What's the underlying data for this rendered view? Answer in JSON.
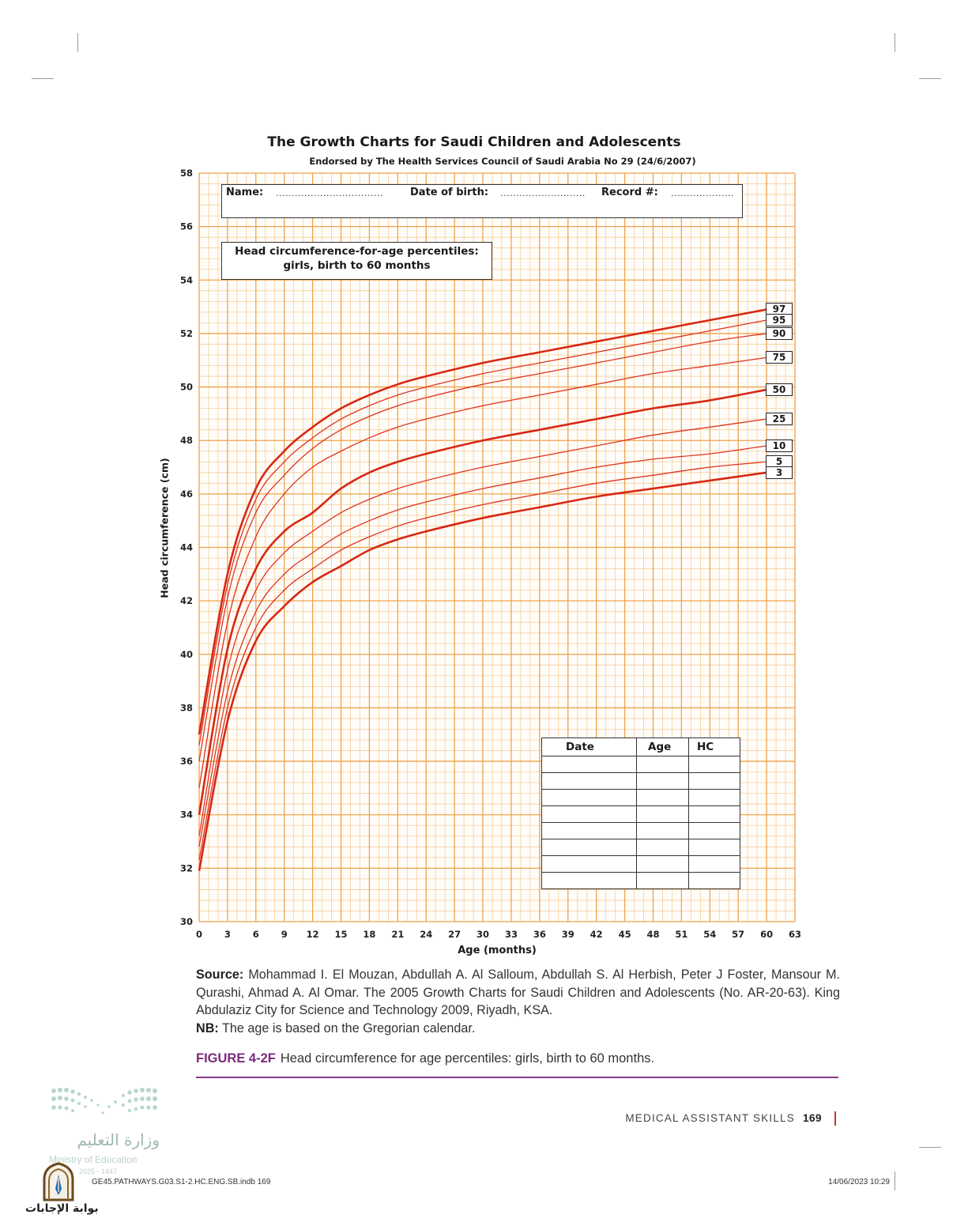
{
  "chart_data": {
    "type": "line",
    "title": "The Growth Charts for Saudi Children and Adolescents",
    "subtitle": "Endorsed by The Health Services Council of Saudi Arabia No 29 (24/6/2007)",
    "chart_label": [
      "Head circumference-for-age percentiles:",
      "girls, birth to 60 months"
    ],
    "xlabel": "Age (months)",
    "ylabel": "Head circumference (cm)",
    "xlim": [
      0,
      63
    ],
    "ylim": [
      30,
      58
    ],
    "x_ticks": [
      "0",
      "3",
      "6",
      "9",
      "12",
      "15",
      "18",
      "21",
      "24",
      "27",
      "30",
      "33",
      "36",
      "39",
      "42",
      "45",
      "48",
      "51",
      "54",
      "57",
      "60",
      "63"
    ],
    "y_ticks": [
      "30",
      "32",
      "34",
      "36",
      "38",
      "40",
      "42",
      "44",
      "46",
      "48",
      "50",
      "52",
      "54",
      "56",
      "58"
    ],
    "grid": true,
    "x": [
      0,
      3,
      6,
      9,
      12,
      15,
      18,
      21,
      24,
      30,
      36,
      42,
      48,
      54,
      60
    ],
    "series": [
      {
        "name": "97",
        "values": [
          37.0,
          43.0,
          46.2,
          47.6,
          48.5,
          49.2,
          49.7,
          50.1,
          50.4,
          50.9,
          51.3,
          51.7,
          52.1,
          52.5,
          52.9
        ],
        "bold": true
      },
      {
        "name": "95",
        "values": [
          36.6,
          42.6,
          45.8,
          47.2,
          48.1,
          48.8,
          49.3,
          49.7,
          50.0,
          50.5,
          50.9,
          51.3,
          51.7,
          52.1,
          52.5
        ],
        "bold": false
      },
      {
        "name": "90",
        "values": [
          36.0,
          42.1,
          45.3,
          46.7,
          47.7,
          48.4,
          48.9,
          49.3,
          49.6,
          50.1,
          50.5,
          50.9,
          51.3,
          51.7,
          52.0
        ],
        "bold": false
      },
      {
        "name": "75",
        "values": [
          35.0,
          41.2,
          44.4,
          46.0,
          47.0,
          47.6,
          48.1,
          48.5,
          48.8,
          49.3,
          49.7,
          50.1,
          50.5,
          50.8,
          51.1
        ],
        "bold": false
      },
      {
        "name": "50",
        "values": [
          34.0,
          40.2,
          43.2,
          44.6,
          45.3,
          46.2,
          46.8,
          47.2,
          47.5,
          48.0,
          48.4,
          48.8,
          49.2,
          49.5,
          49.9
        ],
        "bold": true
      },
      {
        "name": "25",
        "values": [
          33.2,
          39.4,
          42.4,
          43.8,
          44.6,
          45.3,
          45.8,
          46.2,
          46.5,
          47.0,
          47.4,
          47.8,
          48.2,
          48.5,
          48.8
        ],
        "bold": false
      },
      {
        "name": "10",
        "values": [
          32.8,
          38.6,
          41.6,
          43.0,
          43.8,
          44.5,
          45.0,
          45.4,
          45.7,
          46.2,
          46.6,
          47.0,
          47.3,
          47.5,
          47.8
        ],
        "bold": false
      },
      {
        "name": "5",
        "values": [
          32.3,
          38.0,
          41.0,
          42.4,
          43.2,
          43.9,
          44.4,
          44.8,
          45.1,
          45.6,
          46.0,
          46.4,
          46.7,
          47.0,
          47.2
        ],
        "bold": false
      },
      {
        "name": "3",
        "values": [
          31.9,
          37.5,
          40.5,
          41.8,
          42.7,
          43.3,
          43.9,
          44.3,
          44.6,
          45.1,
          45.5,
          45.9,
          46.2,
          46.5,
          46.8
        ],
        "bold": true
      }
    ],
    "colors": {
      "grid": "#f0a24a",
      "grid_minor": "#f7cd9c",
      "curve": "#e0331d",
      "curve_dark": "#d62814"
    }
  },
  "form": {
    "name_label": "Name:",
    "name_blank": "..................................",
    "dob_label": "Date of birth:",
    "dob_blank": "...........................",
    "record_label": "Record #:",
    "record_blank": "...................."
  },
  "record_table": {
    "headers": [
      "Date",
      "Age",
      "HC"
    ]
  },
  "source": {
    "label": "Source:",
    "text": "Mohammad I. El Mouzan, Abdullah A. Al Salloum, Abdullah S. Al Herbish, Peter J Foster, Mansour M. Qurashi, Ahmad A. Al Omar. The 2005 Growth Charts for Saudi Children and Adolescents (No. AR-20-63). King Abdulaziz City for Science and Technology 2009, Riyadh, KSA.",
    "nb_label": "NB:",
    "nb_text": "The age is based on the Gregorian calendar."
  },
  "caption": {
    "figure_number": "FIGURE 4-2F",
    "text": "Head circumference for age percentiles: girls, birth to 60 months."
  },
  "footer": {
    "running_head": "MEDICAL ASSISTANT SKILLS",
    "page_number": "169",
    "slug_left": "GE45.PATHWAYS.G03.S1-2.HC.ENG.SB.indb   169",
    "slug_right": "14/06/2023   10:29"
  },
  "watermark": {
    "ministry_ar": "وزارة التعليم",
    "ministry_en": "Ministry of Education",
    "year": "2025 - 1447",
    "answers_ar": "بوابة الإجابات"
  }
}
